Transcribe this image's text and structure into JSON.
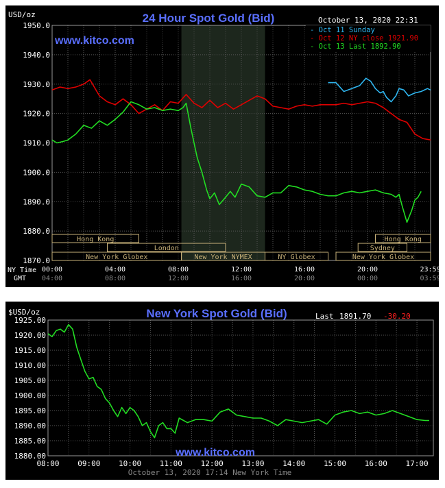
{
  "colors": {
    "background": "#000000",
    "title": "#5a6fff",
    "grid": "#555555",
    "axis_text": "#ffffff",
    "sub_text": "#888888",
    "oct11": "#2fb6f0",
    "oct12": "#e00000",
    "oct13": "#22dd22",
    "nymex_band": "#1d271d",
    "session_box": "#c9b27a",
    "change_neg": "#ff2020"
  },
  "chart_data": [
    {
      "type": "line",
      "title": "24 Hour Spot Gold (Bid)",
      "unit_label": "USD/oz",
      "timestamp": "October 13, 2020 22:31",
      "watermark": "www.kitco.com",
      "ylim": [
        1870,
        1950
      ],
      "yticks": [
        "1950.0",
        "1940.0",
        "1930.0",
        "1920.0",
        "1910.0",
        "1900.0",
        "1890.0",
        "1880.0",
        "1870.0"
      ],
      "xlim": [
        0,
        24
      ],
      "row_labels": [
        "NY Time",
        "GMT"
      ],
      "xticks_ny": [
        "00:00",
        "04:00",
        "08:00",
        "12:00",
        "16:00",
        "20:00",
        "23:59"
      ],
      "xticks_gmt": [
        "04:00",
        "08:00",
        "12:00",
        "16:00",
        "20:00",
        "00:00",
        "03:59"
      ],
      "xtick_hours": [
        0,
        4,
        8,
        12,
        16,
        20,
        23.98
      ],
      "nymex_shading_hours": [
        8.2,
        13.5
      ],
      "sessions": [
        {
          "name": "Hong Kong",
          "start": 0,
          "end": 5.5,
          "row": 1
        },
        {
          "name": "London",
          "start": 3.5,
          "end": 11.0,
          "row": 2
        },
        {
          "name": "New York Globex",
          "start": 0,
          "end": 8.2,
          "row": 3
        },
        {
          "name": "New York NYMEX",
          "start": 8.2,
          "end": 13.5,
          "row": 3
        },
        {
          "name": "NY Globex",
          "start": 13.5,
          "end": 17.5,
          "row": 3
        },
        {
          "name": "Hong Kong",
          "start": 20.5,
          "end": 24,
          "row": 1
        },
        {
          "name": "Sydney",
          "start": 19.4,
          "end": 22.5,
          "row": 2
        },
        {
          "name": "New York Globex",
          "start": 18.0,
          "end": 24,
          "row": 3
        }
      ],
      "legend": [
        {
          "label": "Oct 11 Sunday",
          "color": "#2fb6f0"
        },
        {
          "label": "Oct 12 NY close 1921.90",
          "color": "#e00000"
        },
        {
          "label": "Oct 13 Last 1892.90",
          "color": "#22dd22"
        }
      ],
      "series": [
        {
          "name": "Oct 11 Sunday",
          "color": "#2fb6f0",
          "x": [
            17.5,
            18.0,
            18.5,
            19.0,
            19.5,
            19.9,
            20.2,
            20.5,
            20.8,
            21.0,
            21.2,
            21.5,
            21.8,
            22.0,
            22.3,
            22.6,
            23.0,
            23.4,
            23.8,
            24.0
          ],
          "y": [
            1930.5,
            1930.5,
            1927.5,
            1928.5,
            1929.5,
            1932.0,
            1931.0,
            1928.5,
            1927.0,
            1927.5,
            1925.5,
            1924.0,
            1926.0,
            1928.5,
            1928.0,
            1926.0,
            1927.0,
            1927.5,
            1928.5,
            1928.0
          ]
        },
        {
          "name": "Oct 12 NY close 1921.90",
          "color": "#e00000",
          "x": [
            0,
            0.5,
            1.0,
            1.5,
            2.0,
            2.4,
            3.0,
            3.5,
            4.0,
            4.5,
            5.0,
            5.5,
            6.0,
            6.5,
            7.0,
            7.5,
            8.0,
            8.5,
            9.0,
            9.5,
            10.0,
            10.5,
            11.0,
            11.5,
            12.0,
            12.5,
            13.0,
            13.5,
            14.0,
            14.5,
            15.0,
            15.5,
            16.0,
            16.5,
            17.0,
            17.5,
            18.0,
            18.5,
            19.0,
            19.5,
            20.0,
            20.5,
            21.0,
            21.5,
            22.0,
            22.5,
            23.0,
            23.5,
            24.0
          ],
          "y": [
            1928.0,
            1929.0,
            1928.5,
            1929.0,
            1930.0,
            1931.5,
            1926.0,
            1924.0,
            1923.0,
            1925.0,
            1923.0,
            1920.0,
            1921.5,
            1923.0,
            1921.0,
            1924.0,
            1923.5,
            1926.5,
            1923.5,
            1922.0,
            1924.5,
            1922.0,
            1923.5,
            1921.5,
            1923.0,
            1924.5,
            1926.0,
            1925.0,
            1922.5,
            1922.0,
            1921.5,
            1922.5,
            1923.0,
            1922.5,
            1923.0,
            1923.0,
            1923.0,
            1923.5,
            1923.0,
            1923.5,
            1924.0,
            1923.5,
            1922.0,
            1920.0,
            1918.0,
            1917.0,
            1913.0,
            1911.5,
            1911.0
          ]
        },
        {
          "name": "Oct 13 Last 1892.90",
          "color": "#22dd22",
          "x": [
            0,
            0.3,
            0.7,
            1.0,
            1.5,
            2.0,
            2.5,
            3.0,
            3.5,
            4.0,
            4.5,
            5.0,
            5.5,
            6.0,
            6.5,
            7.0,
            7.5,
            8.0,
            8.3,
            8.5,
            8.8,
            9.2,
            9.5,
            9.8,
            10.0,
            10.3,
            10.6,
            11.0,
            11.3,
            11.6,
            12.0,
            12.5,
            13.0,
            13.5,
            14.0,
            14.5,
            15.0,
            15.5,
            16.0,
            16.5,
            17.0,
            17.5,
            18.0,
            18.5,
            19.0,
            19.5,
            20.0,
            20.5,
            21.0,
            21.5,
            21.8,
            22.0,
            22.2,
            22.5,
            22.8,
            23.0,
            23.2,
            23.4
          ],
          "y": [
            1911.0,
            1910.0,
            1910.5,
            1911.0,
            1913.0,
            1916.0,
            1915.0,
            1917.5,
            1916.0,
            1918.0,
            1920.5,
            1924.0,
            1923.0,
            1921.5,
            1922.0,
            1921.0,
            1921.5,
            1921.0,
            1922.0,
            1923.5,
            1915.0,
            1905.0,
            1900.0,
            1894.0,
            1891.0,
            1893.0,
            1889.0,
            1891.5,
            1893.5,
            1891.5,
            1896.0,
            1895.0,
            1892.0,
            1891.5,
            1893.0,
            1893.0,
            1895.5,
            1895.0,
            1894.0,
            1893.5,
            1892.5,
            1892.0,
            1892.0,
            1893.0,
            1893.5,
            1893.0,
            1893.5,
            1894.0,
            1893.0,
            1892.5,
            1891.5,
            1892.5,
            1888.5,
            1883.0,
            1887.0,
            1890.5,
            1891.5,
            1893.5
          ]
        }
      ]
    },
    {
      "type": "line",
      "title": "New York Spot Gold (Bid)",
      "unit_label": "$USD/oz",
      "last_label": "Last",
      "last_value": "1891.70",
      "change": "-30.20",
      "watermark": "www.kitco.com",
      "footer": "October 13, 2020 17:14 New York Time",
      "ylim": [
        1880,
        1925
      ],
      "yticks": [
        "1925.00",
        "1920.00",
        "1915.00",
        "1910.00",
        "1905.00",
        "1900.00",
        "1895.00",
        "1890.00",
        "1885.00",
        "1880.00"
      ],
      "xlim": [
        8,
        17.4
      ],
      "xticks": [
        "08:00",
        "09:00",
        "10:00",
        "11:00",
        "12:00",
        "13:00",
        "14:00",
        "15:00",
        "16:00",
        "17:00"
      ],
      "xtick_hours": [
        8,
        9,
        10,
        11,
        12,
        13,
        14,
        15,
        16,
        17
      ],
      "series": [
        {
          "name": "",
          "color": "#22dd22",
          "x": [
            8.0,
            8.1,
            8.2,
            8.3,
            8.4,
            8.5,
            8.6,
            8.7,
            8.8,
            8.9,
            9.0,
            9.1,
            9.2,
            9.3,
            9.4,
            9.5,
            9.6,
            9.7,
            9.8,
            9.9,
            10.0,
            10.1,
            10.2,
            10.3,
            10.4,
            10.5,
            10.6,
            10.7,
            10.8,
            10.9,
            11.0,
            11.1,
            11.2,
            11.4,
            11.6,
            11.8,
            12.0,
            12.2,
            12.4,
            12.6,
            12.8,
            13.0,
            13.2,
            13.4,
            13.6,
            13.8,
            14.0,
            14.2,
            14.4,
            14.6,
            14.8,
            15.0,
            15.2,
            15.4,
            15.6,
            15.8,
            16.0,
            16.2,
            16.4,
            16.6,
            16.8,
            17.0,
            17.2,
            17.3
          ],
          "y": [
            1920.5,
            1919.5,
            1921.5,
            1922.0,
            1921.0,
            1923.5,
            1922.0,
            1916.0,
            1912.0,
            1908.0,
            1905.5,
            1906.0,
            1903.0,
            1902.0,
            1899.0,
            1897.5,
            1895.0,
            1893.0,
            1896.0,
            1894.0,
            1896.0,
            1895.0,
            1893.0,
            1890.0,
            1891.0,
            1888.0,
            1886.0,
            1890.0,
            1891.0,
            1889.0,
            1889.0,
            1887.5,
            1892.5,
            1891.0,
            1892.0,
            1892.0,
            1891.5,
            1894.5,
            1895.5,
            1893.5,
            1893.0,
            1892.5,
            1892.5,
            1891.5,
            1890.0,
            1892.0,
            1891.5,
            1891.0,
            1891.5,
            1892.0,
            1890.5,
            1893.5,
            1894.5,
            1895.0,
            1894.0,
            1894.5,
            1893.5,
            1894.0,
            1895.0,
            1894.0,
            1893.0,
            1892.0,
            1891.7,
            1891.7
          ]
        }
      ]
    }
  ]
}
